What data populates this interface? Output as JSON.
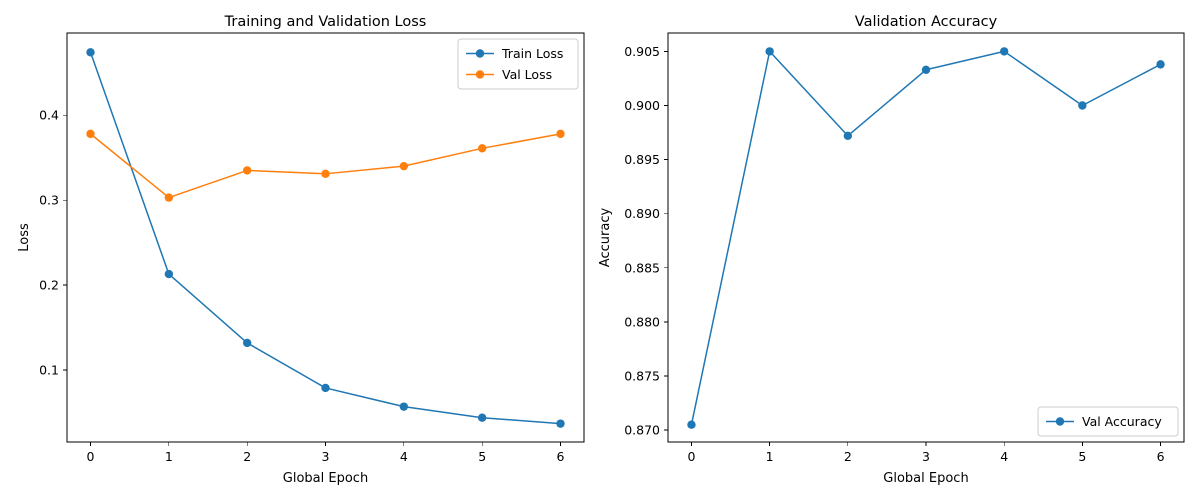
{
  "chart_data": [
    {
      "type": "line",
      "title": "Training and Validation Loss",
      "xlabel": "Global Epoch",
      "ylabel": "Loss",
      "x": [
        0,
        1,
        2,
        3,
        4,
        5,
        6
      ],
      "xlim": [
        -0.3,
        6.3
      ],
      "ylim": [
        0.0154,
        0.4967
      ],
      "xticks": [
        0,
        1,
        2,
        3,
        4,
        5,
        6
      ],
      "yticks": [
        0.1,
        0.2,
        0.3,
        0.4
      ],
      "ytick_labels": [
        "0.1",
        "0.2",
        "0.3",
        "0.4"
      ],
      "legend_position": "top-right",
      "series": [
        {
          "name": "Train Loss",
          "color": "#1f77b4",
          "marker": "circle",
          "values": [
            0.474,
            0.213,
            0.132,
            0.079,
            0.057,
            0.044,
            0.037
          ]
        },
        {
          "name": "Val Loss",
          "color": "#ff7f0e",
          "marker": "circle",
          "values": [
            0.378,
            0.303,
            0.335,
            0.331,
            0.34,
            0.361,
            0.378
          ]
        }
      ]
    },
    {
      "type": "line",
      "title": "Validation Accuracy",
      "xlabel": "Global Epoch",
      "ylabel": "Accuracy",
      "x": [
        0,
        1,
        2,
        3,
        4,
        5,
        6
      ],
      "xlim": [
        -0.3,
        6.3
      ],
      "ylim": [
        0.8689,
        0.9067
      ],
      "xticks": [
        0,
        1,
        2,
        3,
        4,
        5,
        6
      ],
      "yticks": [
        0.87,
        0.875,
        0.88,
        0.885,
        0.89,
        0.895,
        0.9,
        0.905
      ],
      "ytick_labels": [
        "0.870",
        "0.875",
        "0.880",
        "0.885",
        "0.890",
        "0.895",
        "0.900",
        "0.905"
      ],
      "legend_position": "bottom-right",
      "series": [
        {
          "name": "Val Accuracy",
          "color": "#1f77b4",
          "marker": "circle",
          "values": [
            0.8705,
            0.905,
            0.8972,
            0.9033,
            0.905,
            0.9,
            0.9038
          ]
        }
      ]
    }
  ]
}
